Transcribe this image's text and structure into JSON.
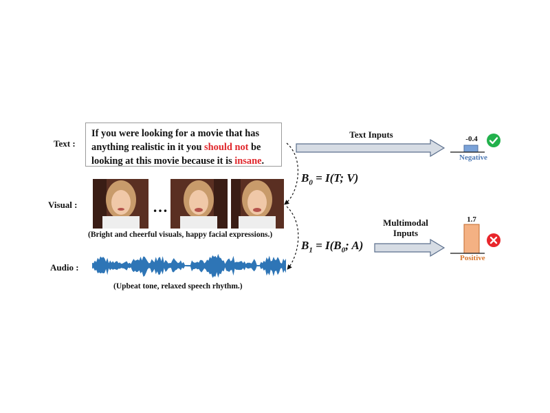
{
  "labels": {
    "text": "Text :",
    "visual": "Visual :",
    "audio": "Audio :"
  },
  "sentence": {
    "line1": "If you were looking for a movie that has",
    "line2_pre": "anything realistic in it you ",
    "line2_red": "should not",
    "line2_post": " be",
    "line3_pre": "looking at this movie because it is ",
    "line3_red": "insane",
    "line3_post": "."
  },
  "visual": {
    "ellipsis": "…",
    "caption": "(Bright and cheerful visuals, happy facial expressions.)"
  },
  "audio": {
    "caption": "(Upbeat tone, relaxed speech rhythm.)"
  },
  "formulas": {
    "b0_lhs": "B",
    "b0_sub": "0",
    "b0_rhs": "= I(T; V)",
    "b1_lhs": "B",
    "b1_sub": "1",
    "b1_rhs_pre": "= I(B",
    "b1_rhs_sub": "0",
    "b1_rhs_post": "; A)"
  },
  "top_branch": {
    "arrow_label": "Text Inputs",
    "value": "-0.4",
    "sentiment": "Negative",
    "verdict_icon": "check-circle-icon"
  },
  "bottom_branch": {
    "arrow_label_line1": "Multimodal",
    "arrow_label_line2": "Inputs",
    "value": "1.7",
    "sentiment": "Positive",
    "verdict_icon": "cross-circle-icon"
  },
  "colors": {
    "highlight_red": "#e0262b",
    "negative_bar": "#7aa2d8",
    "negative_text": "#4d79b4",
    "positive_bar": "#f4b183",
    "positive_text": "#d8772e",
    "arrow_fill": "#d6dce4",
    "arrow_stroke": "#5a6e8c",
    "waveform": "#2e75b6",
    "check": "#22b14c",
    "cross": "#e8262b"
  }
}
